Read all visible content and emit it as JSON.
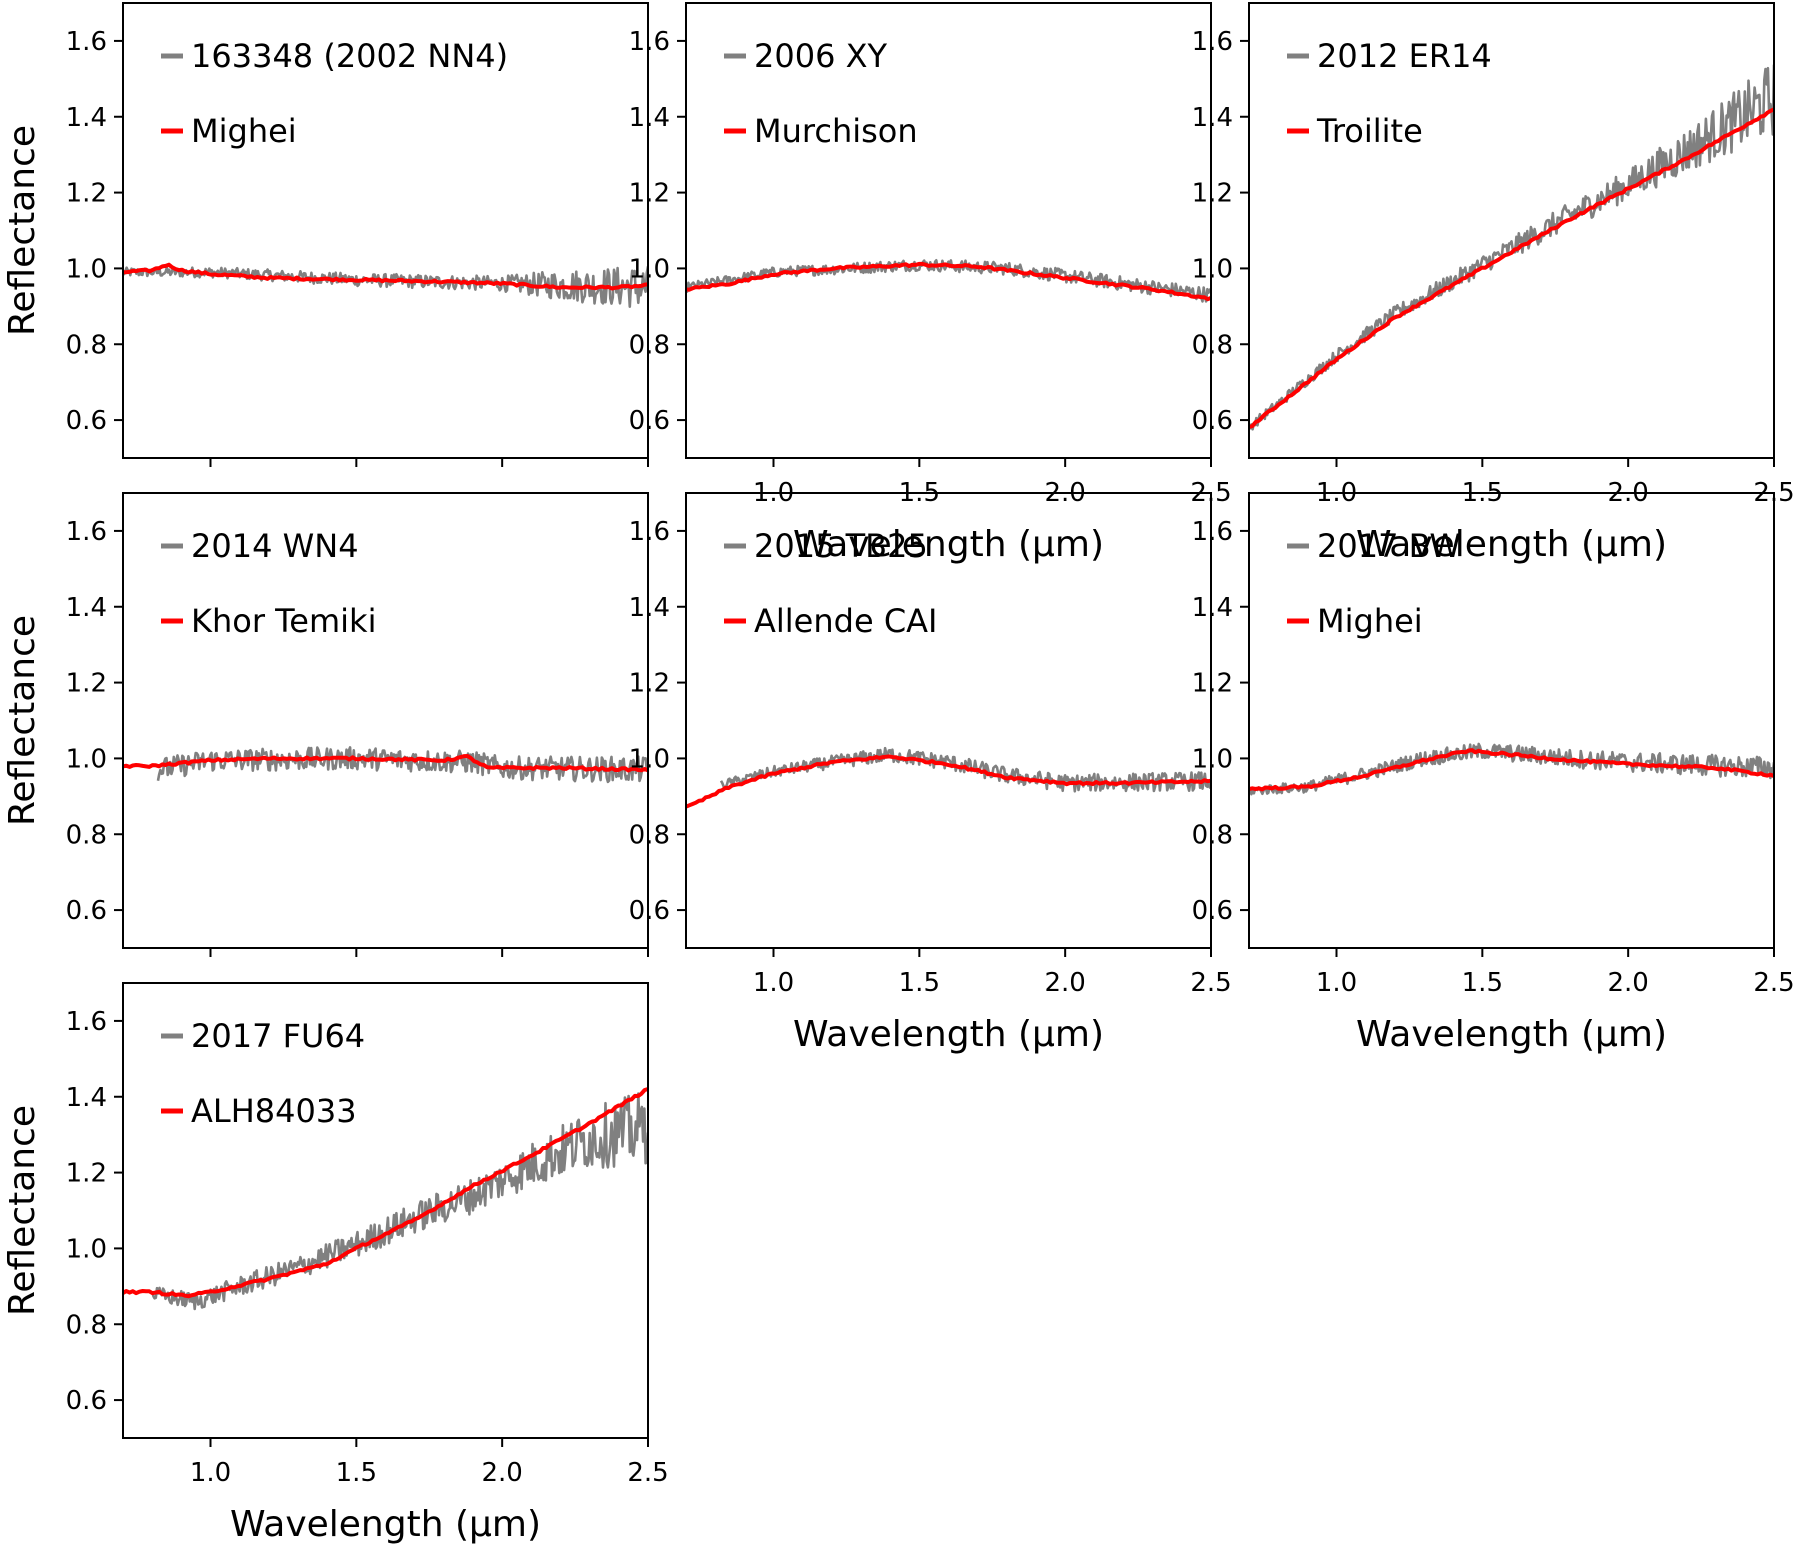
{
  "chart_data": [
    {
      "type": "line",
      "panel": "row1-col1",
      "xlim": [
        0.7,
        2.5
      ],
      "ylim": [
        0.5,
        1.7
      ],
      "xticks": [
        1.0,
        1.5,
        2.0,
        2.5
      ],
      "yticks": [
        0.6,
        0.8,
        1.0,
        1.2,
        1.4,
        1.6
      ],
      "ylabel": "Reflectance",
      "xlabel": "",
      "show_x_ticklabels": false,
      "series": [
        {
          "name": "163348 (2002 NN4)",
          "role": "asteroid",
          "x_start": 0.7,
          "x_end": 2.5,
          "trend": [
            [
              0.7,
              0.99
            ],
            [
              1.0,
              0.99
            ],
            [
              1.5,
              0.97
            ],
            [
              2.0,
              0.96
            ],
            [
              2.5,
              0.95
            ]
          ],
          "noise": [
            [
              0.7,
              0.012
            ],
            [
              2.0,
              0.02
            ],
            [
              2.2,
              0.04
            ],
            [
              2.5,
              0.06
            ]
          ]
        },
        {
          "name": "Mighei",
          "role": "meteorite",
          "x_start": 0.7,
          "x_end": 2.5,
          "values": [
            [
              0.7,
              0.99
            ],
            [
              0.8,
              0.995
            ],
            [
              0.85,
              1.01
            ],
            [
              0.9,
              0.995
            ],
            [
              1.0,
              0.985
            ],
            [
              1.2,
              0.975
            ],
            [
              1.5,
              0.97
            ],
            [
              1.8,
              0.965
            ],
            [
              2.0,
              0.96
            ],
            [
              2.2,
              0.95
            ],
            [
              2.4,
              0.95
            ],
            [
              2.5,
              0.955
            ]
          ]
        }
      ]
    },
    {
      "type": "line",
      "panel": "row1-col2",
      "xlim": [
        0.7,
        2.5
      ],
      "ylim": [
        0.5,
        1.7
      ],
      "xticks": [
        1.0,
        1.5,
        2.0,
        2.5
      ],
      "yticks": [
        0.6,
        0.8,
        1.0,
        1.2,
        1.4,
        1.6
      ],
      "ylabel": "",
      "xlabel": "Wavelength (μm)",
      "show_x_ticklabels": true,
      "series": [
        {
          "name": "2006 XY",
          "role": "asteroid",
          "x_start": 0.7,
          "x_end": 2.5,
          "trend": [
            [
              0.7,
              0.95
            ],
            [
              1.0,
              0.99
            ],
            [
              1.5,
              1.01
            ],
            [
              1.8,
              1.0
            ],
            [
              2.0,
              0.98
            ],
            [
              2.3,
              0.95
            ],
            [
              2.5,
              0.93
            ]
          ],
          "noise": [
            [
              0.7,
              0.012
            ],
            [
              2.0,
              0.018
            ],
            [
              2.5,
              0.02
            ]
          ]
        },
        {
          "name": "Murchison",
          "role": "meteorite",
          "x_start": 0.7,
          "x_end": 2.5,
          "values": [
            [
              0.7,
              0.945
            ],
            [
              0.85,
              0.96
            ],
            [
              1.0,
              0.985
            ],
            [
              1.2,
              1.0
            ],
            [
              1.5,
              1.01
            ],
            [
              1.7,
              1.005
            ],
            [
              2.0,
              0.975
            ],
            [
              2.3,
              0.945
            ],
            [
              2.5,
              0.92
            ]
          ]
        }
      ]
    },
    {
      "type": "line",
      "panel": "row1-col3",
      "xlim": [
        0.7,
        2.5
      ],
      "ylim": [
        0.5,
        1.7
      ],
      "xticks": [
        1.0,
        1.5,
        2.0,
        2.5
      ],
      "yticks": [
        0.6,
        0.8,
        1.0,
        1.2,
        1.4,
        1.6
      ],
      "ylabel": "",
      "xlabel": "Wavelength (μm)",
      "show_x_ticklabels": true,
      "series": [
        {
          "name": "2012 ER14",
          "role": "asteroid",
          "x_start": 0.7,
          "x_end": 2.5,
          "trend": [
            [
              0.7,
              0.58
            ],
            [
              1.0,
              0.77
            ],
            [
              1.2,
              0.88
            ],
            [
              1.5,
              1.01
            ],
            [
              1.8,
              1.14
            ],
            [
              2.0,
              1.22
            ],
            [
              2.2,
              1.31
            ],
            [
              2.5,
              1.45
            ]
          ],
          "noise": [
            [
              0.7,
              0.012
            ],
            [
              1.5,
              0.025
            ],
            [
              2.0,
              0.04
            ],
            [
              2.3,
              0.07
            ],
            [
              2.5,
              0.1
            ]
          ]
        },
        {
          "name": "Troilite",
          "role": "meteorite",
          "x_start": 0.7,
          "x_end": 2.5,
          "values": [
            [
              0.7,
              0.58
            ],
            [
              1.0,
              0.76
            ],
            [
              1.2,
              0.87
            ],
            [
              1.5,
              1.0
            ],
            [
              1.8,
              1.13
            ],
            [
              2.0,
              1.21
            ],
            [
              2.2,
              1.29
            ],
            [
              2.5,
              1.42
            ]
          ]
        }
      ]
    },
    {
      "type": "line",
      "panel": "row2-col1",
      "xlim": [
        0.7,
        2.5
      ],
      "ylim": [
        0.5,
        1.7
      ],
      "xticks": [
        1.0,
        1.5,
        2.0,
        2.5
      ],
      "yticks": [
        0.6,
        0.8,
        1.0,
        1.2,
        1.4,
        1.6
      ],
      "ylabel": "Reflectance",
      "xlabel": "",
      "show_x_ticklabels": false,
      "series": [
        {
          "name": "2014 WN4",
          "role": "asteroid",
          "x_start": 0.82,
          "x_end": 2.5,
          "trend": [
            [
              0.82,
              0.97
            ],
            [
              1.0,
              0.995
            ],
            [
              1.5,
              1.0
            ],
            [
              1.9,
              0.99
            ],
            [
              2.0,
              0.975
            ],
            [
              2.5,
              0.97
            ]
          ],
          "noise": [
            [
              0.82,
              0.03
            ],
            [
              2.0,
              0.03
            ],
            [
              2.5,
              0.035
            ]
          ]
        },
        {
          "name": "Khor Temiki",
          "role": "meteorite",
          "x_start": 0.7,
          "x_end": 2.5,
          "values": [
            [
              0.7,
              0.98
            ],
            [
              0.8,
              0.98
            ],
            [
              1.0,
              0.995
            ],
            [
              1.2,
              1.0
            ],
            [
              1.5,
              1.0
            ],
            [
              1.8,
              0.995
            ],
            [
              1.88,
              1.005
            ],
            [
              1.95,
              0.975
            ],
            [
              2.2,
              0.975
            ],
            [
              2.5,
              0.97
            ]
          ]
        }
      ]
    },
    {
      "type": "line",
      "panel": "row2-col2",
      "xlim": [
        0.7,
        2.5
      ],
      "ylim": [
        0.5,
        1.7
      ],
      "xticks": [
        1.0,
        1.5,
        2.0,
        2.5
      ],
      "yticks": [
        0.6,
        0.8,
        1.0,
        1.2,
        1.4,
        1.6
      ],
      "ylabel": "",
      "xlabel": "Wavelength (μm)",
      "show_x_ticklabels": true,
      "series": [
        {
          "name": "2015 TB25",
          "role": "asteroid",
          "x_start": 0.82,
          "x_end": 2.5,
          "trend": [
            [
              0.82,
              0.93
            ],
            [
              1.0,
              0.965
            ],
            [
              1.2,
              0.99
            ],
            [
              1.4,
              1.01
            ],
            [
              1.6,
              0.99
            ],
            [
              1.8,
              0.955
            ],
            [
              2.0,
              0.935
            ],
            [
              2.5,
              0.94
            ]
          ],
          "noise": [
            [
              0.82,
              0.012
            ],
            [
              1.4,
              0.02
            ],
            [
              2.5,
              0.025
            ]
          ]
        },
        {
          "name": "Allende CAI",
          "role": "meteorite",
          "x_start": 0.7,
          "x_end": 2.5,
          "values": [
            [
              0.7,
              0.87
            ],
            [
              0.85,
              0.925
            ],
            [
              1.0,
              0.96
            ],
            [
              1.2,
              0.99
            ],
            [
              1.4,
              1.005
            ],
            [
              1.6,
              0.985
            ],
            [
              1.8,
              0.95
            ],
            [
              2.0,
              0.935
            ],
            [
              2.2,
              0.935
            ],
            [
              2.5,
              0.94
            ]
          ]
        }
      ]
    },
    {
      "type": "line",
      "panel": "row2-col3",
      "xlim": [
        0.7,
        2.5
      ],
      "ylim": [
        0.5,
        1.7
      ],
      "xticks": [
        1.0,
        1.5,
        2.0,
        2.5
      ],
      "yticks": [
        0.6,
        0.8,
        1.0,
        1.2,
        1.4,
        1.6
      ],
      "ylabel": "",
      "xlabel": "Wavelength (μm)",
      "show_x_ticklabels": true,
      "series": [
        {
          "name": "2017 BW",
          "role": "asteroid",
          "x_start": 0.7,
          "x_end": 2.5,
          "trend": [
            [
              0.7,
              0.915
            ],
            [
              0.9,
              0.925
            ],
            [
              1.1,
              0.96
            ],
            [
              1.3,
              1.0
            ],
            [
              1.5,
              1.02
            ],
            [
              1.8,
              1.0
            ],
            [
              2.0,
              0.99
            ],
            [
              2.5,
              0.975
            ]
          ],
          "noise": [
            [
              0.7,
              0.012
            ],
            [
              1.3,
              0.02
            ],
            [
              2.5,
              0.03
            ]
          ]
        },
        {
          "name": "Mighei",
          "role": "meteorite",
          "x_start": 0.7,
          "x_end": 2.5,
          "values": [
            [
              0.7,
              0.92
            ],
            [
              0.9,
              0.925
            ],
            [
              1.1,
              0.955
            ],
            [
              1.3,
              0.995
            ],
            [
              1.45,
              1.02
            ],
            [
              1.6,
              1.01
            ],
            [
              1.8,
              0.995
            ],
            [
              2.0,
              0.985
            ],
            [
              2.3,
              0.975
            ],
            [
              2.5,
              0.955
            ]
          ]
        }
      ]
    },
    {
      "type": "line",
      "panel": "row3-col1",
      "xlim": [
        0.7,
        2.5
      ],
      "ylim": [
        0.5,
        1.7
      ],
      "xticks": [
        1.0,
        1.5,
        2.0,
        2.5
      ],
      "yticks": [
        0.6,
        0.8,
        1.0,
        1.2,
        1.4,
        1.6
      ],
      "ylabel": "Reflectance",
      "xlabel": "Wavelength (μm)",
      "show_x_ticklabels": true,
      "series": [
        {
          "name": "2017 FU64",
          "role": "asteroid",
          "x_start": 0.8,
          "x_end": 2.5,
          "trend": [
            [
              0.8,
              0.88
            ],
            [
              0.95,
              0.86
            ],
            [
              1.1,
              0.9
            ],
            [
              1.3,
              0.95
            ],
            [
              1.5,
              1.01
            ],
            [
              1.7,
              1.08
            ],
            [
              1.9,
              1.14
            ],
            [
              2.1,
              1.22
            ],
            [
              2.3,
              1.29
            ],
            [
              2.5,
              1.32
            ]
          ],
          "noise": [
            [
              0.8,
              0.02
            ],
            [
              1.5,
              0.035
            ],
            [
              2.0,
              0.05
            ],
            [
              2.3,
              0.08
            ],
            [
              2.5,
              0.1
            ]
          ]
        },
        {
          "name": "ALH84033",
          "role": "meteorite",
          "x_start": 0.7,
          "x_end": 2.5,
          "values": [
            [
              0.7,
              0.885
            ],
            [
              0.8,
              0.885
            ],
            [
              0.92,
              0.875
            ],
            [
              1.0,
              0.885
            ],
            [
              1.2,
              0.92
            ],
            [
              1.4,
              0.96
            ],
            [
              1.5,
              1.0
            ],
            [
              1.7,
              1.075
            ],
            [
              1.9,
              1.165
            ],
            [
              2.1,
              1.245
            ],
            [
              2.3,
              1.33
            ],
            [
              2.5,
              1.42
            ]
          ]
        }
      ]
    }
  ],
  "colors": {
    "asteroid": "#808080",
    "meteorite": "#ff0000"
  }
}
